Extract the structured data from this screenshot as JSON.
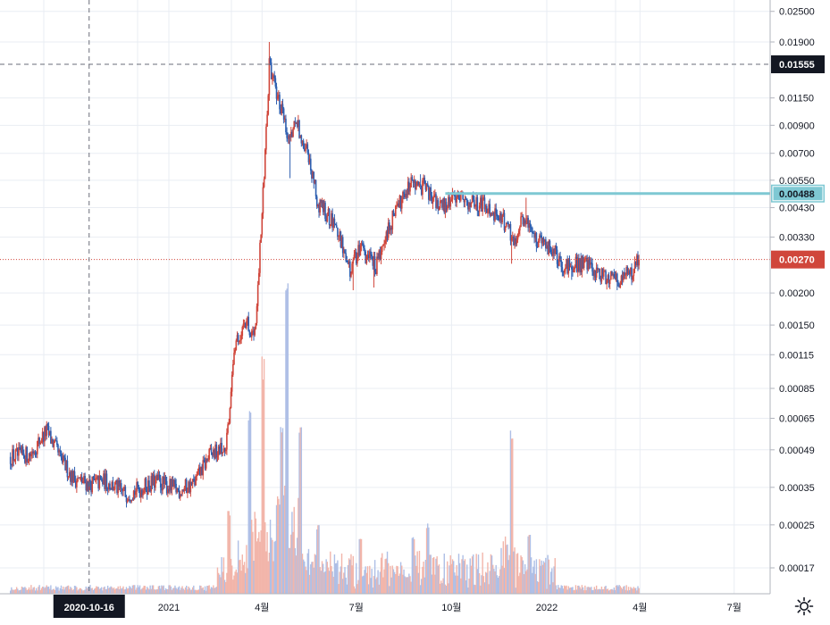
{
  "chart_data": {
    "type": "candlestick",
    "scale": "log",
    "grid": true,
    "y_ticks": [
      "0.02500",
      "0.01900",
      "0.01150",
      "0.00900",
      "0.00700",
      "0.00550",
      "0.00430",
      "0.00330",
      "0.00200",
      "0.00150",
      "0.00115",
      "0.00085",
      "0.00065",
      "0.00049",
      "0.00035",
      "0.00025",
      "0.00017"
    ],
    "x_ticks": [
      "2021",
      "4월",
      "7월",
      "10월",
      "2022",
      "4월",
      "7월"
    ],
    "crosshair": {
      "price_label": "0.01555",
      "date_label": "2020-10-16"
    },
    "horizontal_line": {
      "price": 0.00488,
      "label": "0.00488",
      "color": "#7ec8d3"
    },
    "last_price": {
      "price": 0.0027,
      "label": "0.00270",
      "color": "#d0463b"
    },
    "colors": {
      "up": "#d0463b",
      "down": "#2e5fb0",
      "vol_up": "#f2b5aa",
      "vol_down": "#aebfe6",
      "grid": "#e9edf3"
    },
    "price_path": [
      [
        "2020-08-01",
        0.00046
      ],
      [
        "2020-08-20",
        0.00047
      ],
      [
        "2020-09-05",
        0.00058
      ],
      [
        "2020-09-20",
        0.00044
      ],
      [
        "2020-10-01",
        0.00038
      ],
      [
        "2020-10-16",
        0.00036
      ],
      [
        "2020-11-01",
        0.00037
      ],
      [
        "2020-11-20",
        0.00033
      ],
      [
        "2020-12-01",
        0.00034
      ],
      [
        "2020-12-20",
        0.00037
      ],
      [
        "2021-01-10",
        0.00034
      ],
      [
        "2021-01-25",
        0.00036
      ],
      [
        "2021-02-10",
        0.00047
      ],
      [
        "2021-02-25",
        0.00049
      ],
      [
        "2021-03-05",
        0.00115
      ],
      [
        "2021-03-15",
        0.0016
      ],
      [
        "2021-03-25",
        0.00135
      ],
      [
        "2021-04-01",
        0.004
      ],
      [
        "2021-04-08",
        0.0155
      ],
      [
        "2021-04-15",
        0.012
      ],
      [
        "2021-04-25",
        0.0085
      ],
      [
        "2021-05-05",
        0.009
      ],
      [
        "2021-05-15",
        0.0072
      ],
      [
        "2021-05-25",
        0.0044
      ],
      [
        "2021-06-10",
        0.0038
      ],
      [
        "2021-06-25",
        0.0024
      ],
      [
        "2021-07-05",
        0.003
      ],
      [
        "2021-07-20",
        0.0025
      ],
      [
        "2021-08-05",
        0.0039
      ],
      [
        "2021-08-20",
        0.0053
      ],
      [
        "2021-09-05",
        0.0052
      ],
      [
        "2021-09-20",
        0.0043
      ],
      [
        "2021-10-05",
        0.0047
      ],
      [
        "2021-10-20",
        0.0045
      ],
      [
        "2021-11-05",
        0.0044
      ],
      [
        "2021-11-20",
        0.0038
      ],
      [
        "2021-12-01",
        0.0032
      ],
      [
        "2021-12-10",
        0.004
      ],
      [
        "2021-12-20",
        0.0033
      ],
      [
        "2022-01-05",
        0.003
      ],
      [
        "2022-01-20",
        0.0025
      ],
      [
        "2022-02-05",
        0.0026
      ],
      [
        "2022-02-20",
        0.00235
      ],
      [
        "2022-03-10",
        0.00225
      ],
      [
        "2022-03-25",
        0.0024
      ],
      [
        "2022-03-31",
        0.0027
      ]
    ],
    "spikes": [
      [
        "2021-04-08",
        0.019
      ],
      [
        "2021-04-28",
        0.0056
      ],
      [
        "2021-06-28",
        0.00205
      ],
      [
        "2021-07-18",
        0.0021
      ],
      [
        "2021-09-01",
        0.0058
      ],
      [
        "2021-11-28",
        0.0026
      ],
      [
        "2021-12-12",
        0.0047
      ],
      [
        "2022-01-25",
        0.00225
      ],
      [
        "2022-03-10",
        0.00205
      ]
    ],
    "volume_peaks": [
      [
        "2021-02-28",
        0.14
      ],
      [
        "2021-03-20",
        0.32
      ],
      [
        "2021-04-02",
        0.4
      ],
      [
        "2021-04-20",
        0.3
      ],
      [
        "2021-04-25",
        0.55
      ],
      [
        "2021-05-08",
        0.29
      ],
      [
        "2021-05-25",
        0.12
      ],
      [
        "2021-07-05",
        0.1
      ],
      [
        "2021-08-25",
        0.1
      ],
      [
        "2021-09-08",
        0.12
      ],
      [
        "2021-11-28",
        0.28
      ],
      [
        "2021-12-15",
        0.1
      ]
    ]
  }
}
